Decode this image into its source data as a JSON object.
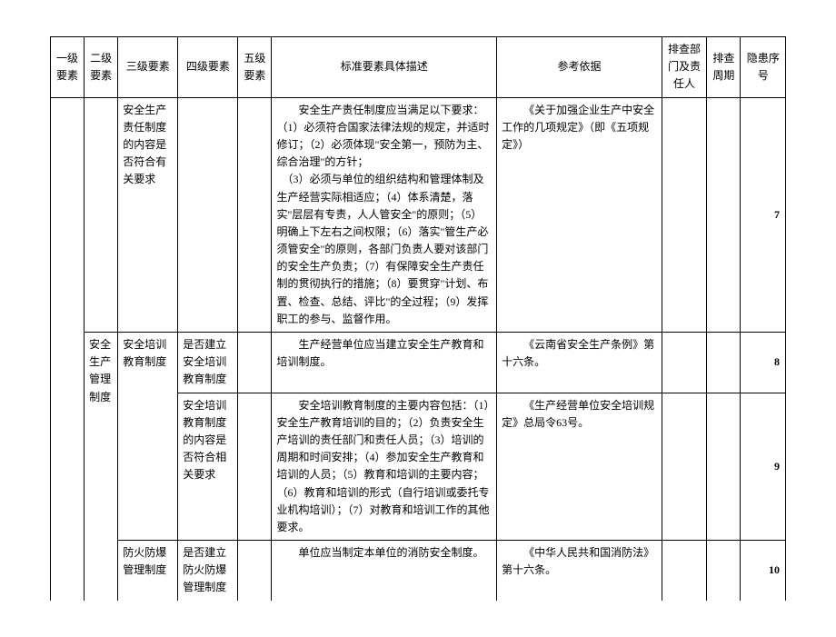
{
  "headers": {
    "l1": "一级要素",
    "l2": "二级要素",
    "l3": "三级要素",
    "l4": "四级要素",
    "l5": "五级要素",
    "desc": "标准要素具体描述",
    "ref": "参考依据",
    "dept": "排查部门及责任人",
    "cycle": "排查周期",
    "index": "隐患序号"
  },
  "rows": [
    {
      "l1": "",
      "l2": "",
      "l3": "安全生产责任制度的内容是否符合有关要求",
      "l4": "",
      "l5": "",
      "desc": "安全生产责任制度应当满足以下要求：（1）必须符合国家法律法规的规定，并适时修订；（2）必须体现\"安全第一，预防为主、综合治理\"的方针；\n　（3）必须与单位的组织结构和管理体制及生产经营实际相适应；（4）体系清楚，落实\"层层有专责，人人管安全\"的原则；（5）明确上下左右之间权限；（6）落实\"管生产必须管安全\"的原则，各部门负责人要对该部门的安全生产负责；（7）有保障安全生产责任制的贯彻执行的措施；（8）要贯穿\"计划、布置、检查、总结、评比\"的全过程；（9）发挥职工的参与、监督作用。",
      "ref": "《关于加强企业生产中安全工作的几项规定》（即《五项规定》）",
      "idx": "7"
    },
    {
      "l2": "安全生产管理制度",
      "l3": "安全培训教育制度",
      "l4": "是否建立安全培训教育制度",
      "l5": "",
      "desc": "生产经营单位应当建立安全生产教育和培训制度。",
      "ref": "《云南省安全生产条例》第十六条。",
      "idx": "8"
    },
    {
      "l3": "",
      "l4": "安全培训教育制度的内容是否符合相关要求",
      "l5": "",
      "desc": "安全培训教育制度的主要内容包括：（1）安全生产教育培训的目的；（2）负责安全生产培训的责任部门和责任人员；（3）培训的周期和时间安排；（4）参加安全生产教育和培训的人员；（5）教育和培训的主要内容；（6）教育和培训的形式（自行培训或委托专业机构培训）；（7）对教育和培训工作的其他要求。",
      "ref": "《生产经营单位安全培训规定》总局令63号。",
      "idx": "9"
    },
    {
      "l3": "防火防爆管理制度",
      "l4": "是否建立防火防爆管理制度",
      "l5": "",
      "desc": "单位应当制定本单位的消防安全制度。",
      "ref": "《中华人民共和国消防法》第十六条。",
      "idx": "10"
    }
  ]
}
